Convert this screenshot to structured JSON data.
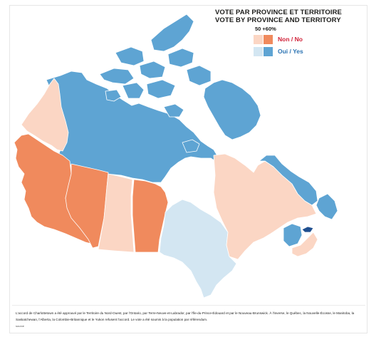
{
  "title_fr": "VOTE PAR PROVINCE ET TERRITOIRE",
  "title_en": "VOTE BY PROVINCE AND TERRITORY",
  "legend": {
    "heading": "50 +60%",
    "items": [
      {
        "label": "Non / No",
        "light": "#fbd6c4",
        "dark": "#f08a5d",
        "label_color": "#d1233a"
      },
      {
        "label": "Oui / Yes",
        "light": "#d3e6f2",
        "dark": "#5ea4d3",
        "label_color": "#2c74b3"
      }
    ]
  },
  "colors": {
    "no_strong": "#f08a5d",
    "no_weak": "#fbd6c4",
    "yes_strong": "#5ea4d3",
    "yes_weak": "#d3e6f2",
    "pei": "#1f4f8f",
    "water": "#ffffff",
    "border": "#ffffff"
  },
  "regions": [
    {
      "name": "Yukon",
      "vote": "no_weak"
    },
    {
      "name": "Northwest Territories",
      "vote": "yes_strong"
    },
    {
      "name": "British Columbia",
      "vote": "no_strong"
    },
    {
      "name": "Alberta",
      "vote": "no_strong"
    },
    {
      "name": "Saskatchewan",
      "vote": "no_weak"
    },
    {
      "name": "Manitoba",
      "vote": "no_strong"
    },
    {
      "name": "Ontario",
      "vote": "yes_weak"
    },
    {
      "name": "Quebec",
      "vote": "no_weak"
    },
    {
      "name": "Newfoundland and Labrador",
      "vote": "yes_strong"
    },
    {
      "name": "New Brunswick",
      "vote": "yes_strong"
    },
    {
      "name": "Nova Scotia",
      "vote": "no_weak"
    },
    {
      "name": "Prince Edward Island",
      "vote": "pei"
    }
  ],
  "caption": "L'accord de Charlottetown a été approuvé par le Territoire du Nord-Ouest, par l'Ontario, par Terre-Neuve-et-Labrador, par l'Île-du-Prince-Édouard et par le Nouveau-Brunswick. À l'inverse, le Québec, la Nouvelle-Écosse, le Manitoba, la Saskatchewan, l'Alberta, la Colombie-Britannique et le Yukon refusent l'accord. Le vote a été soumis à la population par référendum.",
  "source": "source"
}
